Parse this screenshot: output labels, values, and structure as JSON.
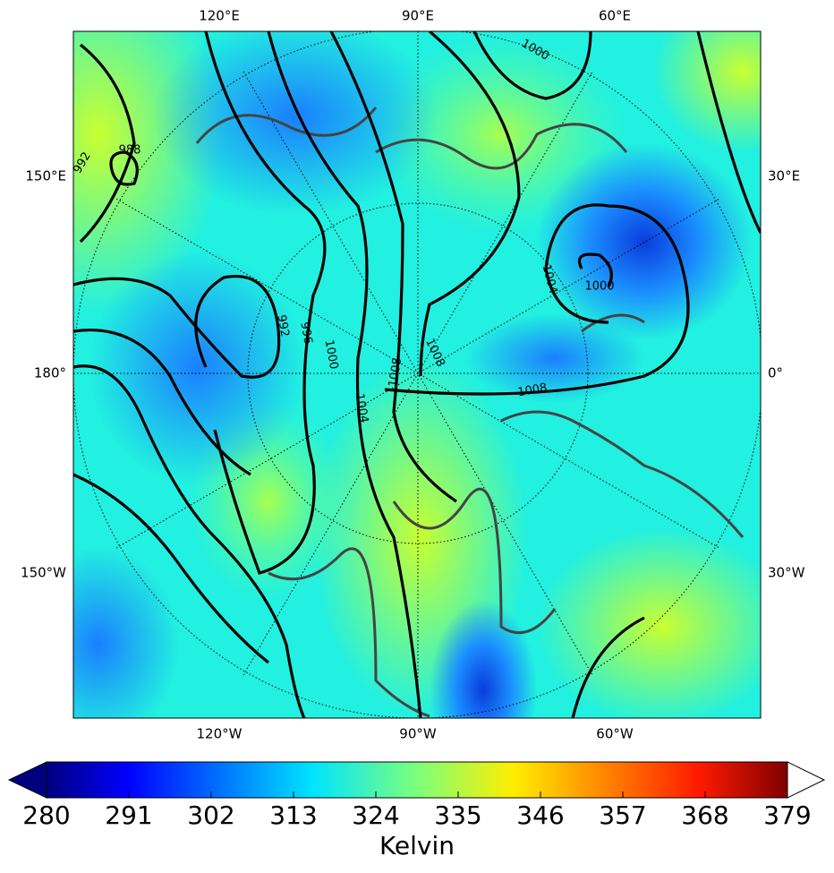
{
  "map": {
    "top_labels": [
      "120°E",
      "90°E",
      "60°E"
    ],
    "bottom_labels": [
      "120°W",
      "90°W",
      "60°W"
    ],
    "left_labels": [
      "150°E",
      "180°",
      "150°W"
    ],
    "right_labels": [
      "30°E",
      "0°",
      "30°W"
    ],
    "contour_labels": [
      988,
      992,
      992,
      996,
      1000,
      1004,
      1008,
      1008,
      1004,
      1000,
      1008,
      1000
    ]
  },
  "colorbar": {
    "label": "Kelvin",
    "lim": [
      280,
      379
    ],
    "ticks": [
      280,
      291,
      302,
      313,
      324,
      335,
      346,
      357,
      368,
      379
    ]
  }
}
